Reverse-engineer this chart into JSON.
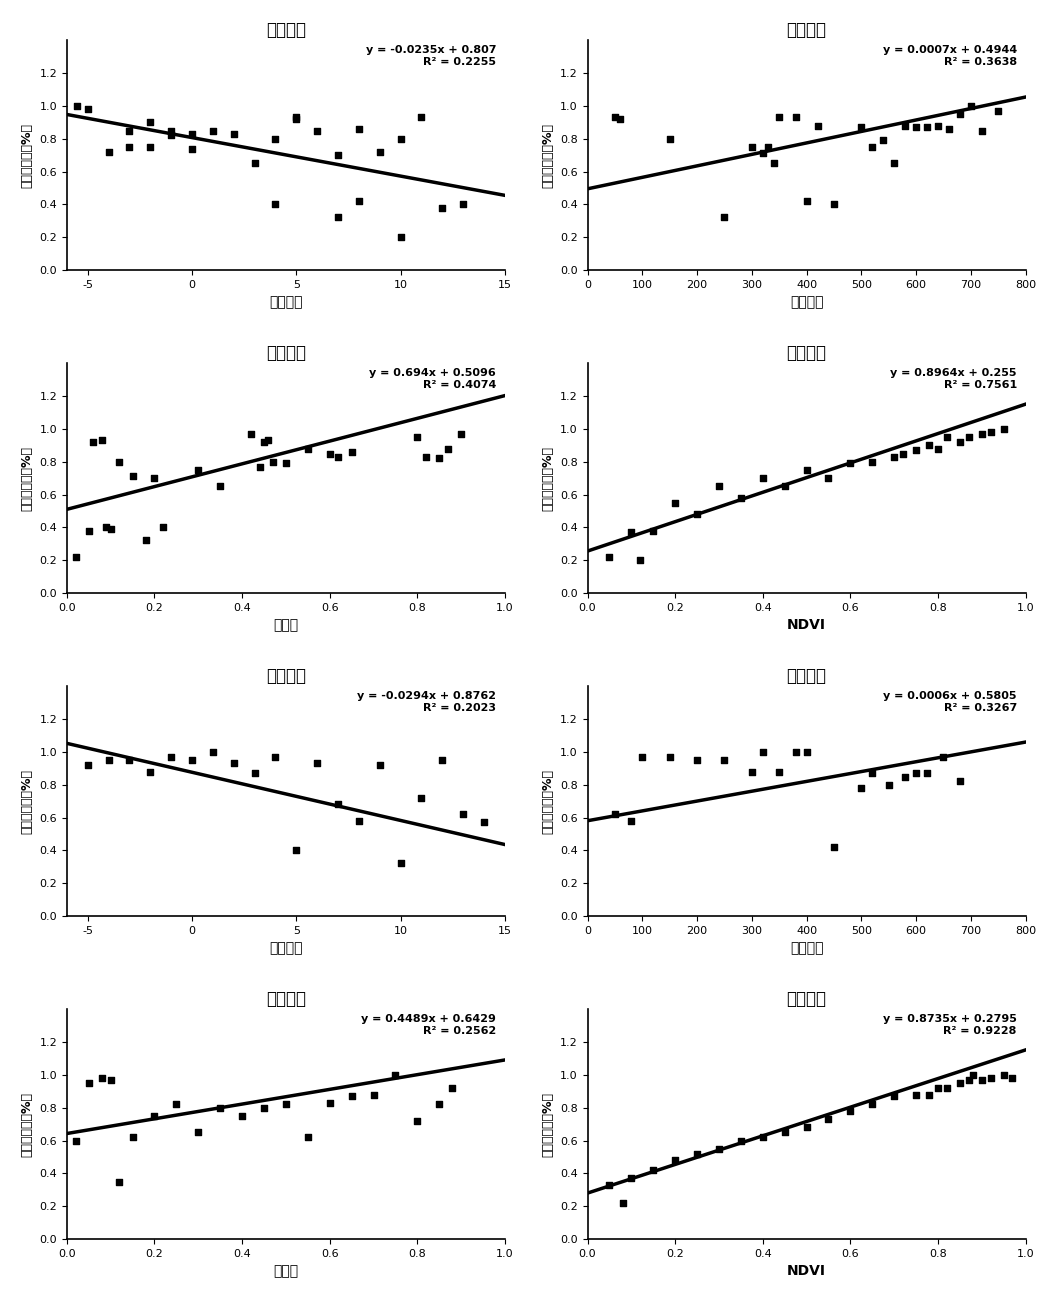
{
  "subplots": [
    {
      "title": "三级草地",
      "xlabel": "年均气温",
      "ylabel": "地上生物量（%）",
      "equation": "y = -0.0235x + 0.807",
      "r2": "R² = 0.2255",
      "slope": -0.0235,
      "intercept": 0.807,
      "xlim": [
        -6,
        15
      ],
      "ylim": [
        0,
        1.4
      ],
      "xticks": [
        -5,
        0,
        5,
        10,
        15
      ],
      "yticks": [
        0,
        0.2,
        0.4,
        0.6,
        0.8,
        1.0,
        1.2
      ],
      "scatter_x": [
        -5.5,
        -5,
        -4,
        -3,
        -3,
        -2,
        -2,
        -1,
        -1,
        0,
        0,
        1,
        2,
        3,
        4,
        4,
        5,
        5,
        6,
        7,
        7,
        8,
        8,
        9,
        10,
        10,
        11,
        12,
        13
      ],
      "scatter_y": [
        1.0,
        0.98,
        0.72,
        0.75,
        0.85,
        0.9,
        0.75,
        0.85,
        0.82,
        0.83,
        0.74,
        0.85,
        0.83,
        0.65,
        0.4,
        0.8,
        0.92,
        0.93,
        0.85,
        0.7,
        0.32,
        0.42,
        0.86,
        0.72,
        0.8,
        0.2,
        0.93,
        0.38,
        0.4
      ]
    },
    {
      "title": "三级草地",
      "xlabel": "年均降水",
      "ylabel": "地上生物量（%）",
      "equation": "y = 0.0007x + 0.4944",
      "r2": "R² = 0.3638",
      "slope": 0.0007,
      "intercept": 0.4944,
      "xlim": [
        0,
        800
      ],
      "ylim": [
        0,
        1.4
      ],
      "xticks": [
        0,
        100,
        200,
        300,
        400,
        500,
        600,
        700,
        800
      ],
      "yticks": [
        0,
        0.2,
        0.4,
        0.6,
        0.8,
        1.0,
        1.2
      ],
      "scatter_x": [
        50,
        60,
        150,
        250,
        300,
        320,
        330,
        340,
        350,
        380,
        400,
        420,
        450,
        500,
        520,
        540,
        560,
        580,
        600,
        620,
        640,
        660,
        680,
        700,
        720,
        750
      ],
      "scatter_y": [
        0.93,
        0.92,
        0.8,
        0.32,
        0.75,
        0.71,
        0.75,
        0.65,
        0.93,
        0.93,
        0.42,
        0.88,
        0.4,
        0.87,
        0.75,
        0.79,
        0.65,
        0.88,
        0.87,
        0.87,
        0.88,
        0.86,
        0.95,
        1.0,
        0.85,
        0.97
      ]
    },
    {
      "title": "三级草地",
      "xlabel": "湿润度",
      "ylabel": "地上生物量（%）",
      "equation": "y = 0.694x + 0.5096",
      "r2": "R² = 0.4074",
      "slope": 0.694,
      "intercept": 0.5096,
      "xlim": [
        0,
        1.0
      ],
      "ylim": [
        0,
        1.4
      ],
      "xticks": [
        0,
        0.2,
        0.4,
        0.6,
        0.8,
        1.0
      ],
      "yticks": [
        0,
        0.2,
        0.4,
        0.6,
        0.8,
        1.0,
        1.2
      ],
      "scatter_x": [
        0.02,
        0.05,
        0.06,
        0.08,
        0.09,
        0.1,
        0.12,
        0.15,
        0.18,
        0.2,
        0.22,
        0.3,
        0.35,
        0.42,
        0.44,
        0.45,
        0.46,
        0.47,
        0.5,
        0.55,
        0.6,
        0.62,
        0.65,
        0.8,
        0.82,
        0.85,
        0.87,
        0.9
      ],
      "scatter_y": [
        0.22,
        0.38,
        0.92,
        0.93,
        0.4,
        0.39,
        0.8,
        0.71,
        0.32,
        0.7,
        0.4,
        0.75,
        0.65,
        0.97,
        0.77,
        0.92,
        0.93,
        0.8,
        0.79,
        0.88,
        0.85,
        0.83,
        0.86,
        0.95,
        0.83,
        0.82,
        0.88,
        0.97
      ]
    },
    {
      "title": "三级草地",
      "xlabel": "NDVI",
      "ylabel": "地上生物量（%）",
      "equation": "y = 0.8964x + 0.255",
      "r2": "R² = 0.7561",
      "slope": 0.8964,
      "intercept": 0.255,
      "xlim": [
        0,
        1.0
      ],
      "ylim": [
        0,
        1.4
      ],
      "xticks": [
        0,
        0.2,
        0.4,
        0.6,
        0.8,
        1.0
      ],
      "yticks": [
        0,
        0.2,
        0.4,
        0.6,
        0.8,
        1.0,
        1.2
      ],
      "scatter_x": [
        0.05,
        0.1,
        0.12,
        0.15,
        0.2,
        0.25,
        0.3,
        0.35,
        0.4,
        0.45,
        0.5,
        0.55,
        0.6,
        0.65,
        0.7,
        0.72,
        0.75,
        0.78,
        0.8,
        0.82,
        0.85,
        0.87,
        0.9,
        0.92,
        0.95
      ],
      "scatter_y": [
        0.22,
        0.37,
        0.2,
        0.38,
        0.55,
        0.48,
        0.65,
        0.58,
        0.7,
        0.65,
        0.75,
        0.7,
        0.79,
        0.8,
        0.83,
        0.85,
        0.87,
        0.9,
        0.88,
        0.95,
        0.92,
        0.95,
        0.97,
        0.98,
        1.0
      ]
    },
    {
      "title": "四级草地",
      "xlabel": "年均气温",
      "ylabel": "地上生物量（%）",
      "equation": "y = -0.0294x + 0.8762",
      "r2": "R² = 0.2023",
      "slope": -0.0294,
      "intercept": 0.8762,
      "xlim": [
        -6,
        15
      ],
      "ylim": [
        0,
        1.4
      ],
      "xticks": [
        -5,
        0,
        5,
        10,
        15
      ],
      "yticks": [
        0,
        0.2,
        0.4,
        0.6,
        0.8,
        1.0,
        1.2
      ],
      "scatter_x": [
        -5,
        -4,
        -3,
        -2,
        -1,
        0,
        1,
        2,
        3,
        4,
        5,
        6,
        7,
        8,
        9,
        10,
        11,
        12,
        13,
        14
      ],
      "scatter_y": [
        0.92,
        0.95,
        0.95,
        0.88,
        0.97,
        0.95,
        1.0,
        0.93,
        0.87,
        0.97,
        0.4,
        0.93,
        0.68,
        0.58,
        0.92,
        0.32,
        0.72,
        0.95,
        0.62,
        0.57
      ]
    },
    {
      "title": "四级草地",
      "xlabel": "年均降水",
      "ylabel": "地上生物量（%）",
      "equation": "y = 0.0006x + 0.5805",
      "r2": "R² = 0.3267",
      "slope": 0.0006,
      "intercept": 0.5805,
      "xlim": [
        0,
        800
      ],
      "ylim": [
        0,
        1.4
      ],
      "xticks": [
        0,
        100,
        200,
        300,
        400,
        500,
        600,
        700,
        800
      ],
      "yticks": [
        0,
        0.2,
        0.4,
        0.6,
        0.8,
        1.0,
        1.2
      ],
      "scatter_x": [
        50,
        80,
        100,
        150,
        200,
        250,
        300,
        320,
        350,
        380,
        400,
        450,
        500,
        520,
        550,
        580,
        600,
        620,
        650,
        680
      ],
      "scatter_y": [
        0.62,
        0.58,
        0.97,
        0.97,
        0.95,
        0.95,
        0.88,
        1.0,
        0.88,
        1.0,
        1.0,
        0.42,
        0.78,
        0.87,
        0.8,
        0.85,
        0.87,
        0.87,
        0.97,
        0.82
      ]
    },
    {
      "title": "四级草地",
      "xlabel": "湿润度",
      "ylabel": "地上生物量（%）",
      "equation": "y = 0.4489x + 0.6429",
      "r2": "R² = 0.2562",
      "slope": 0.4489,
      "intercept": 0.6429,
      "xlim": [
        0,
        1.0
      ],
      "ylim": [
        0,
        1.4
      ],
      "xticks": [
        0,
        0.2,
        0.4,
        0.6,
        0.8,
        1.0
      ],
      "yticks": [
        0,
        0.2,
        0.4,
        0.6,
        0.8,
        1.0,
        1.2
      ],
      "scatter_x": [
        0.02,
        0.05,
        0.08,
        0.1,
        0.12,
        0.15,
        0.2,
        0.25,
        0.3,
        0.35,
        0.4,
        0.45,
        0.5,
        0.55,
        0.6,
        0.65,
        0.7,
        0.75,
        0.8,
        0.85,
        0.88
      ],
      "scatter_y": [
        0.6,
        0.95,
        0.98,
        0.97,
        0.35,
        0.62,
        0.75,
        0.82,
        0.65,
        0.8,
        0.75,
        0.8,
        0.82,
        0.62,
        0.83,
        0.87,
        0.88,
        1.0,
        0.72,
        0.82,
        0.92
      ]
    },
    {
      "title": "四级草地",
      "xlabel": "NDVI",
      "ylabel": "地上生物量（%）",
      "equation": "y = 0.8735x + 0.2795",
      "r2": "R² = 0.9228",
      "slope": 0.8735,
      "intercept": 0.2795,
      "xlim": [
        0,
        1.0
      ],
      "ylim": [
        0,
        1.4
      ],
      "xticks": [
        0,
        0.2,
        0.4,
        0.6,
        0.8,
        1.0
      ],
      "yticks": [
        0,
        0.2,
        0.4,
        0.6,
        0.8,
        1.0,
        1.2
      ],
      "scatter_x": [
        0.05,
        0.08,
        0.1,
        0.15,
        0.2,
        0.25,
        0.3,
        0.35,
        0.4,
        0.45,
        0.5,
        0.55,
        0.6,
        0.65,
        0.7,
        0.75,
        0.78,
        0.8,
        0.82,
        0.85,
        0.87,
        0.88,
        0.9,
        0.92,
        0.95,
        0.97
      ],
      "scatter_y": [
        0.33,
        0.22,
        0.37,
        0.42,
        0.48,
        0.52,
        0.55,
        0.6,
        0.62,
        0.65,
        0.68,
        0.73,
        0.78,
        0.82,
        0.87,
        0.88,
        0.88,
        0.92,
        0.92,
        0.95,
        0.97,
        1.0,
        0.97,
        0.98,
        1.0,
        0.98
      ]
    }
  ],
  "bg_color": "#ffffff",
  "marker_color": "#000000",
  "line_color": "#000000",
  "marker_size": 25,
  "line_width": 2.5
}
